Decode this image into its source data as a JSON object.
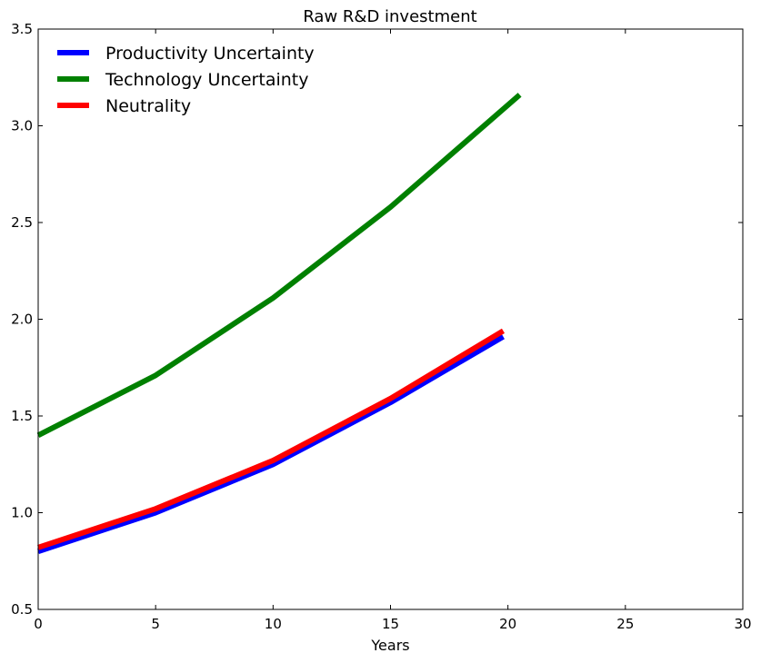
{
  "chart_data": {
    "type": "line",
    "title": "Raw R&D investment",
    "xlabel": "Years",
    "ylabel": "",
    "xlim": [
      0,
      30
    ],
    "ylim": [
      0.5,
      3.5
    ],
    "xticks": [
      0,
      5,
      10,
      15,
      20,
      25,
      30
    ],
    "yticks": [
      0.5,
      1.0,
      1.5,
      2.0,
      2.5,
      3.0,
      3.5
    ],
    "xtick_labels": [
      "0",
      "5",
      "10",
      "15",
      "20",
      "25",
      "30"
    ],
    "ytick_labels": [
      "0.5",
      "1.0",
      "1.5",
      "2.0",
      "2.5",
      "3.0",
      "3.5"
    ],
    "grid": false,
    "legend_position": "top-left",
    "series": [
      {
        "name": "Productivity Uncertainty",
        "color": "#0000ff",
        "x": [
          0,
          5,
          10,
          15,
          19.8
        ],
        "y": [
          0.8,
          1.0,
          1.25,
          1.57,
          1.91
        ]
      },
      {
        "name": "Technology Uncertainty",
        "color": "#008000",
        "x": [
          0,
          5,
          10,
          15,
          20.5
        ],
        "y": [
          1.4,
          1.71,
          2.11,
          2.58,
          3.16
        ]
      },
      {
        "name": "Neutrality",
        "color": "#ff0000",
        "x": [
          0,
          5,
          10,
          15,
          19.8
        ],
        "y": [
          0.82,
          1.02,
          1.27,
          1.59,
          1.94
        ]
      }
    ]
  }
}
